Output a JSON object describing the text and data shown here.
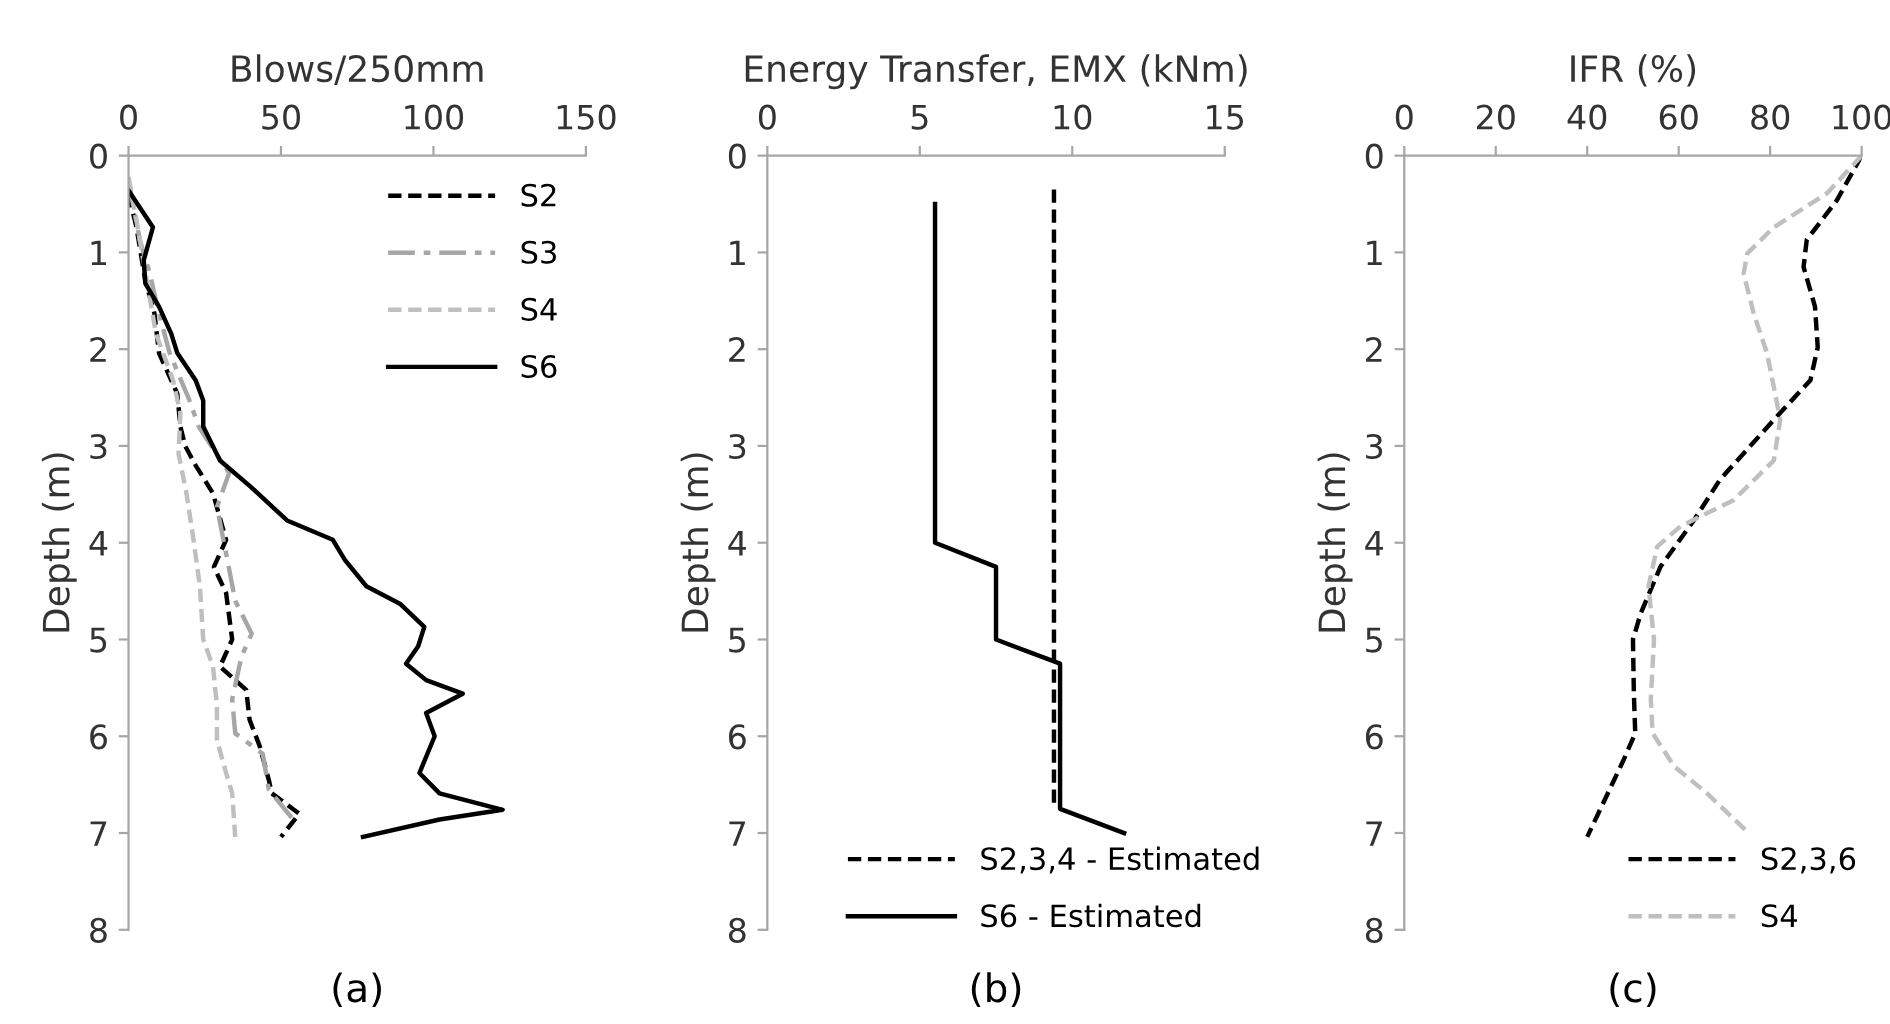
{
  "chart_data": [
    {
      "type": "line",
      "xlabel": "Blows/250mm",
      "ylabel": "Depth (m)",
      "xlim": [
        0,
        150
      ],
      "xticks": [
        0,
        50,
        100,
        150
      ],
      "ylim": [
        8,
        0
      ],
      "yticks": [
        0,
        1,
        2,
        3,
        4,
        5,
        6,
        7,
        8
      ],
      "grid": false,
      "legend": "top right",
      "annotations": [
        "(a)"
      ],
      "series": [
        {
          "name": "S2",
          "color": "#000000",
          "line_style": "dashed",
          "x": [
            0,
            2.6,
            5.5,
            8.5,
            10,
            16,
            17,
            18.6,
            22,
            27.7,
            32,
            28,
            32,
            34,
            30,
            38.6,
            39.7,
            43,
            46,
            47,
            56,
            50
          ],
          "values": [
            0.4,
            0.74,
            1.29,
            1.63,
            2.04,
            2.46,
            2.8,
            3.0,
            3.2,
            3.49,
            3.97,
            4.25,
            4.52,
            5.0,
            5.28,
            5.52,
            5.83,
            6.1,
            6.45,
            6.59,
            6.8,
            7.04
          ]
        },
        {
          "name": "S3",
          "color": "#a6a6a6",
          "line_style": "dashdot",
          "x": [
            0,
            3.7,
            7,
            10,
            13.5,
            20,
            23,
            33,
            29,
            32,
            35,
            40.4,
            37,
            34,
            35,
            44,
            46,
            54
          ],
          "values": [
            0.25,
            0.87,
            1.22,
            1.63,
            2.04,
            2.53,
            2.8,
            3.28,
            3.63,
            4.11,
            4.6,
            4.94,
            5.18,
            5.62,
            5.97,
            6.18,
            6.55,
            6.86
          ]
        },
        {
          "name": "S4",
          "color": "#bfbfbf",
          "line_style": "dashed",
          "x": [
            0,
            2.6,
            6,
            9,
            14.6,
            17,
            16.4,
            19,
            21,
            23.4,
            24.5,
            27.7,
            29,
            29,
            32,
            34,
            35
          ],
          "values": [
            0.22,
            0.67,
            1.29,
            1.84,
            2.32,
            2.66,
            3.08,
            3.49,
            3.9,
            4.45,
            5.0,
            5.28,
            5.69,
            6.04,
            6.38,
            6.59,
            7.04
          ]
        },
        {
          "name": "S6",
          "color": "#000000",
          "line_style": "solid",
          "x": [
            0,
            8,
            5,
            5.5,
            10,
            14,
            16,
            22,
            24.5,
            24.5,
            30,
            40,
            52,
            67,
            71,
            78,
            89,
            97,
            95,
            91,
            97.6,
            109.6,
            97.6,
            100.4,
            95.4,
            102,
            122.7,
            102,
            76.9
          ],
          "values": [
            0.36,
            0.74,
            1.08,
            1.32,
            1.56,
            1.84,
            2.04,
            2.32,
            2.53,
            2.8,
            3.15,
            3.42,
            3.77,
            3.97,
            4.18,
            4.45,
            4.63,
            4.87,
            5.07,
            5.25,
            5.42,
            5.56,
            5.76,
            6.0,
            6.38,
            6.59,
            6.76,
            6.86,
            7.04
          ]
        }
      ]
    },
    {
      "type": "line",
      "xlabel": "Energy Transfer, EMX (kNm)",
      "ylabel": "Depth (m)",
      "xlim": [
        0,
        15
      ],
      "xticks": [
        0,
        5,
        10,
        15
      ],
      "ylim": [
        8,
        0
      ],
      "yticks": [
        0,
        1,
        2,
        3,
        4,
        5,
        6,
        7,
        8
      ],
      "grid": false,
      "legend": "bottom right",
      "annotations": [
        "(b)"
      ],
      "series": [
        {
          "name": "S2,3,4 - Estimated",
          "color": "#000000",
          "line_style": "dashed",
          "x": [
            9.4,
            9.4
          ],
          "values": [
            0.35,
            6.75
          ]
        },
        {
          "name": "S6 - Estimated",
          "color": "#000000",
          "line_style": "solid",
          "x": [
            5.5,
            5.5,
            7.5,
            7.5,
            9.6,
            9.6,
            11.7
          ],
          "values": [
            0.5,
            4.0,
            4.25,
            5.0,
            5.25,
            6.75,
            7.0
          ]
        }
      ]
    },
    {
      "type": "line",
      "xlabel": "IFR (%)",
      "ylabel": "Depth (m)",
      "xlim": [
        0,
        100
      ],
      "xticks": [
        0,
        20,
        40,
        60,
        80,
        100
      ],
      "ylim": [
        8,
        0
      ],
      "yticks": [
        0,
        1,
        2,
        3,
        4,
        5,
        6,
        7,
        8
      ],
      "grid": false,
      "legend": "bottom right",
      "annotations": [
        "(c)"
      ],
      "series": [
        {
          "name": "S2,3,6",
          "color": "#000000",
          "line_style": "dashed",
          "x": [
            100,
            94.6,
            88,
            87.3,
            89.8,
            90.4,
            88.8,
            80.8,
            69,
            63.3,
            56,
            51.7,
            50,
            50.2,
            50.5,
            48,
            40
          ],
          "values": [
            0,
            0.46,
            0.87,
            1.15,
            1.56,
            1.98,
            2.32,
            2.73,
            3.35,
            3.77,
            4.25,
            4.73,
            5.0,
            5.56,
            5.97,
            6.24,
            7.04
          ]
        },
        {
          "name": "S4",
          "color": "#bfbfbf",
          "line_style": "dashed",
          "x": [
            100,
            92.4,
            80.8,
            75,
            74.2,
            76.4,
            79.3,
            80.8,
            82.2,
            80.8,
            72,
            60.4,
            55.3,
            53.4,
            54.6,
            53.9,
            54.3,
            59,
            66.2,
            75.3
          ],
          "values": [
            0,
            0.39,
            0.74,
            1.01,
            1.22,
            1.63,
            2.04,
            2.39,
            2.73,
            3.15,
            3.56,
            3.83,
            4.04,
            4.45,
            5.0,
            5.62,
            5.97,
            6.31,
            6.59,
            7.0
          ]
        }
      ]
    }
  ]
}
